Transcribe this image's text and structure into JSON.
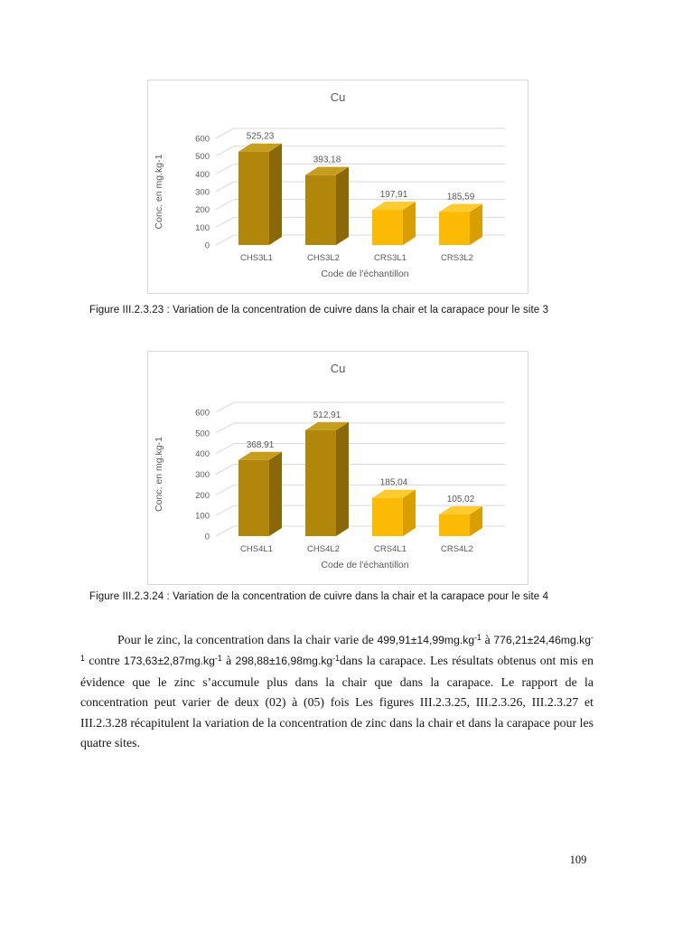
{
  "page": {
    "number": "109"
  },
  "figures": [
    {
      "caption": "Figure III.2.3.23 : Variation de la concentration de cuivre dans la chair et la carapace pour le site 3"
    },
    {
      "caption": "Figure III.2.3.24 : Variation de la concentration de cuivre dans la chair et la carapace pour le site 4"
    }
  ],
  "chart_data": [
    {
      "type": "bar",
      "title": "Cu",
      "categories": [
        "CHS3L1",
        "CHS3L2",
        "CRS3L1",
        "CRS3L2"
      ],
      "values": [
        525.23,
        393.18,
        197.91,
        185.59
      ],
      "value_labels": [
        "525,23",
        "393,18",
        "197,91",
        "185,59"
      ],
      "xlabel": "Code de l'échantillon",
      "ylabel": "Conc. en mg.kg-1",
      "ylim": [
        0,
        600
      ],
      "ytick_step": 100,
      "grid": true,
      "legend": "none",
      "style": "3d-column",
      "bar_styles": [
        "chair",
        "chair",
        "carapace",
        "carapace"
      ],
      "colors": {
        "chair": {
          "front": "#B1870B",
          "side": "#8A6808",
          "top": "#C79D1E"
        },
        "carapace": {
          "front": "#FBBB05",
          "side": "#DA9E00",
          "top": "#FFCB2E"
        }
      },
      "grid_color": "#D9D9D9",
      "text_color": "#595959"
    },
    {
      "type": "bar",
      "title": "Cu",
      "categories": [
        "CHS4L1",
        "CHS4L2",
        "CRS4L1",
        "CRS4L2"
      ],
      "values": [
        368.91,
        512.91,
        185.04,
        105.02
      ],
      "value_labels": [
        "368,91",
        "512,91",
        "185,04",
        "105,02"
      ],
      "xlabel": "Code de l'échantillon",
      "ylabel": "Conc. en mg.kg-1",
      "ylim": [
        0,
        600
      ],
      "ytick_step": 100,
      "grid": true,
      "legend": "none",
      "style": "3d-column",
      "bar_styles": [
        "chair",
        "chair",
        "carapace",
        "carapace"
      ],
      "colors": {
        "chair": {
          "front": "#B1870B",
          "side": "#8A6808",
          "top": "#C79D1E"
        },
        "carapace": {
          "front": "#FBBB05",
          "side": "#DA9E00",
          "top": "#FFCB2E"
        }
      },
      "grid_color": "#D9D9D9",
      "text_color": "#595959"
    }
  ],
  "paragraph": {
    "runs": [
      {
        "t": "Pour le zinc, la concentration dans la chair varie de ",
        "f": "serif"
      },
      {
        "t": "499,91±14,99mg.kg",
        "f": "sans"
      },
      {
        "t": "-1",
        "f": "sans",
        "sup": true
      },
      {
        "t": " à ",
        "f": "serif"
      },
      {
        "t": "776,21±24,46mg.kg",
        "f": "sans"
      },
      {
        "t": "-1",
        "f": "sans",
        "sup": true
      },
      {
        "t": " contre ",
        "f": "serif"
      },
      {
        "t": "173,63±2,87mg.kg",
        "f": "sans"
      },
      {
        "t": "-1",
        "f": "sans",
        "sup": true
      },
      {
        "t": " à ",
        "f": "serif"
      },
      {
        "t": "298,88±16,98mg.kg",
        "f": "sans"
      },
      {
        "t": "-1",
        "f": "sans",
        "sup": true
      },
      {
        "t": "dans la carapace. Les résultats obtenus ont mis en évidence que le zinc s’accumule plus dans la chair que dans la carapace. Le rapport de la concentration peut varier de deux (02) à (05) fois Les figures III.2.3.25, III.2.3.26, III.2.3.27 et III.2.3.28 récapitulent la variation de la concentration de zinc dans la chair et dans la carapace pour les quatre sites.",
        "f": "serif"
      }
    ]
  }
}
